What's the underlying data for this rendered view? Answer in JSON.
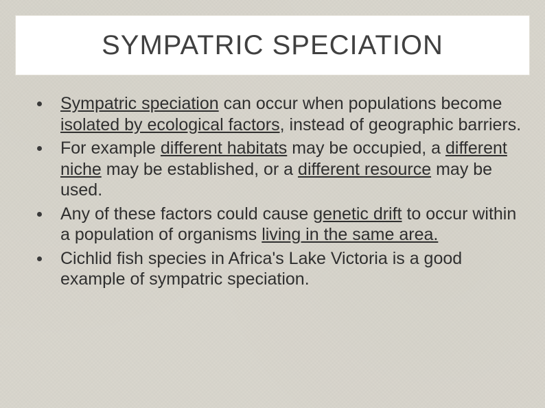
{
  "slide": {
    "background_color": "#d9d6cd",
    "title_box": {
      "background_color": "#ffffff",
      "border_color": "#e1ded5"
    },
    "title": "SYMPATRIC SPECIATION",
    "title_fontsize": 40,
    "title_color": "#404040",
    "body_fontsize": 25,
    "body_color": "#2f2f2f",
    "bullet_color": "#3a3a3a",
    "bullets": [
      {
        "runs": [
          {
            "t": "Sympatric speciation",
            "u": true
          },
          {
            "t": " can occur when populations become "
          },
          {
            "t": "isolated by ecological factors,",
            "u": true
          },
          {
            "t": " instead of geographic barriers."
          }
        ]
      },
      {
        "runs": [
          {
            "t": "For example "
          },
          {
            "t": "different habitats",
            "u": true
          },
          {
            "t": " may be occupied, a "
          },
          {
            "t": "different niche",
            "u": true
          },
          {
            "t": " may be established, or a "
          },
          {
            "t": "different resource",
            "u": true
          },
          {
            "t": " may be used."
          }
        ]
      },
      {
        "runs": [
          {
            "t": "Any of these factors could cause "
          },
          {
            "t": "genetic drift",
            "u": true
          },
          {
            "t": " to occur within a population of organisms "
          },
          {
            "t": "living in the same area.",
            "u": true
          }
        ]
      },
      {
        "runs": [
          {
            "t": "Cichlid fish species in Africa's Lake Victoria is a good example of sympatric speciation."
          }
        ]
      }
    ]
  }
}
